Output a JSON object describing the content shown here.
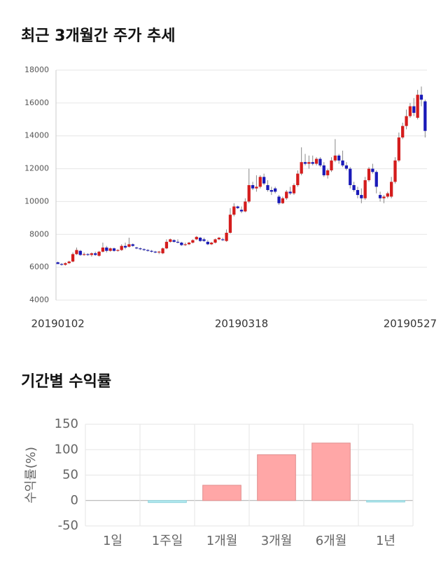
{
  "chart_data": [
    {
      "type": "candlestick",
      "title": "최근 3개월간 주가 추세",
      "up_color": "#d41c1c",
      "down_color": "#1a1ab8",
      "grid": true,
      "ylim": [
        4000,
        18000
      ],
      "yticks": [
        4000,
        6000,
        8000,
        10000,
        12000,
        14000,
        16000,
        18000
      ],
      "categories": [
        "20190102",
        null,
        null,
        null,
        null,
        null,
        null,
        null,
        null,
        null,
        null,
        null,
        null,
        null,
        null,
        null,
        null,
        null,
        null,
        null,
        null,
        null,
        null,
        null,
        null,
        null,
        null,
        null,
        null,
        null,
        null,
        null,
        null,
        null,
        null,
        null,
        null,
        null,
        null,
        null,
        null,
        null,
        null,
        null,
        null,
        null,
        null,
        null,
        null,
        "20190318",
        null,
        null,
        null,
        null,
        null,
        null,
        null,
        null,
        null,
        null,
        null,
        null,
        null,
        null,
        null,
        null,
        null,
        null,
        null,
        null,
        null,
        null,
        null,
        null,
        null,
        null,
        null,
        null,
        null,
        null,
        null,
        null,
        null,
        null,
        null,
        null,
        null,
        null,
        null,
        null,
        null,
        null,
        null,
        null,
        "20190527",
        null,
        null,
        null,
        null
      ],
      "ohlc": [
        [
          6300,
          6350,
          6200,
          6200
        ],
        [
          6200,
          6250,
          6100,
          6150
        ],
        [
          6150,
          6300,
          6100,
          6250
        ],
        [
          6250,
          6400,
          6200,
          6350
        ],
        [
          6350,
          6900,
          6300,
          6800
        ],
        [
          6800,
          7200,
          6750,
          7050
        ],
        [
          7000,
          7050,
          6700,
          6750
        ],
        [
          6750,
          6900,
          6700,
          6800
        ],
        [
          6800,
          6850,
          6700,
          6750
        ],
        [
          6750,
          6900,
          6650,
          6850
        ],
        [
          6850,
          6950,
          6700,
          6750
        ],
        [
          6700,
          7000,
          6650,
          6950
        ],
        [
          6950,
          7500,
          6900,
          7200
        ],
        [
          7200,
          7300,
          6900,
          7000
        ],
        [
          7000,
          7200,
          6950,
          7150
        ],
        [
          7150,
          7200,
          6950,
          7000
        ],
        [
          7000,
          7100,
          6950,
          7050
        ],
        [
          7050,
          7400,
          7000,
          7300
        ],
        [
          7300,
          7500,
          7100,
          7200
        ],
        [
          7250,
          7800,
          7200,
          7400
        ],
        [
          7400,
          7450,
          7250,
          7300
        ],
        [
          7200,
          7250,
          7100,
          7150
        ],
        [
          7150,
          7200,
          7050,
          7100
        ],
        [
          7100,
          7150,
          7000,
          7050
        ],
        [
          7050,
          7100,
          6950,
          7000
        ],
        [
          7000,
          7050,
          6900,
          6950
        ],
        [
          6950,
          7000,
          6850,
          6900
        ],
        [
          6900,
          7000,
          6800,
          6950
        ],
        [
          6850,
          7200,
          6800,
          7150
        ],
        [
          7150,
          7700,
          7100,
          7550
        ],
        [
          7550,
          7750,
          7500,
          7700
        ],
        [
          7650,
          7700,
          7500,
          7550
        ],
        [
          7550,
          7700,
          7450,
          7500
        ],
        [
          7500,
          7550,
          7300,
          7350
        ],
        [
          7350,
          7500,
          7300,
          7400
        ],
        [
          7400,
          7550,
          7350,
          7500
        ],
        [
          7500,
          7700,
          7450,
          7650
        ],
        [
          7700,
          7900,
          7650,
          7850
        ],
        [
          7800,
          7850,
          7550,
          7600
        ],
        [
          7700,
          7800,
          7550,
          7600
        ],
        [
          7550,
          7650,
          7350,
          7400
        ],
        [
          7400,
          7550,
          7350,
          7500
        ],
        [
          7500,
          7750,
          7450,
          7700
        ],
        [
          7700,
          7850,
          7650,
          7800
        ],
        [
          7700,
          7800,
          7600,
          7650
        ],
        [
          7600,
          8300,
          7550,
          8100
        ],
        [
          8100,
          9600,
          8050,
          9200
        ],
        [
          9200,
          9900,
          9100,
          9700
        ],
        [
          9700,
          9750,
          9550,
          9600
        ],
        [
          9500,
          9700,
          9300,
          9400
        ],
        [
          9400,
          10200,
          9350,
          10000
        ],
        [
          10000,
          12000,
          9900,
          11000
        ],
        [
          11000,
          11200,
          10700,
          10800
        ],
        [
          10800,
          11600,
          10600,
          10900
        ],
        [
          10900,
          11600,
          10800,
          11500
        ],
        [
          11500,
          11700,
          11000,
          11100
        ],
        [
          11000,
          11300,
          10600,
          10700
        ],
        [
          10700,
          10900,
          10400,
          10600
        ],
        [
          10800,
          10900,
          10500,
          10600
        ],
        [
          10300,
          10400,
          9800,
          9900
        ],
        [
          9900,
          10300,
          9850,
          10200
        ],
        [
          10200,
          10700,
          10100,
          10600
        ],
        [
          10600,
          10900,
          10400,
          10500
        ],
        [
          10500,
          11100,
          10400,
          11000
        ],
        [
          11000,
          11900,
          10900,
          11700
        ],
        [
          11700,
          13300,
          11600,
          12400
        ],
        [
          12400,
          12900,
          12200,
          12300
        ],
        [
          12300,
          12800,
          12000,
          12400
        ],
        [
          12400,
          12800,
          12200,
          12300
        ],
        [
          12300,
          12700,
          12200,
          12600
        ],
        [
          12600,
          12700,
          12100,
          12200
        ],
        [
          12200,
          12400,
          11500,
          11600
        ],
        [
          11600,
          12000,
          11400,
          11900
        ],
        [
          11900,
          12700,
          11800,
          12500
        ],
        [
          12500,
          13800,
          12400,
          12800
        ],
        [
          12800,
          12900,
          12300,
          12500
        ],
        [
          12500,
          13100,
          12100,
          12200
        ],
        [
          12200,
          12400,
          11900,
          12000
        ],
        [
          12000,
          12100,
          10800,
          11000
        ],
        [
          11000,
          11200,
          10600,
          10700
        ],
        [
          10700,
          10900,
          10200,
          10400
        ],
        [
          10400,
          10800,
          9900,
          10200
        ],
        [
          10200,
          11500,
          10100,
          11300
        ],
        [
          11300,
          12100,
          11200,
          12000
        ],
        [
          12000,
          12300,
          11700,
          11800
        ],
        [
          11800,
          11900,
          10500,
          10900
        ],
        [
          10400,
          10600,
          10000,
          10200
        ],
        [
          10200,
          10400,
          9900,
          10300
        ],
        [
          10300,
          10600,
          10200,
          10500
        ],
        [
          10300,
          11500,
          10200,
          11200
        ],
        [
          11200,
          12700,
          11100,
          12500
        ],
        [
          12500,
          14200,
          12400,
          13900
        ],
        [
          13900,
          14800,
          13800,
          14600
        ],
        [
          14600,
          15600,
          14400,
          15200
        ],
        [
          15200,
          16000,
          15100,
          15800
        ],
        [
          15800,
          16300,
          15200,
          15400
        ],
        [
          15100,
          16800,
          15000,
          16500
        ],
        [
          16500,
          17000,
          15800,
          16200
        ],
        [
          16100,
          16200,
          13900,
          14300
        ]
      ]
    },
    {
      "type": "bar",
      "title": "기간별 수익률",
      "ylabel": "수익률(%)",
      "categories": [
        "1일",
        "1주일",
        "1개월",
        "3개월",
        "6개월",
        "1년"
      ],
      "values": [
        0,
        -4,
        30,
        90,
        113,
        -3
      ],
      "color": "#ffa7a7",
      "negative_color": "#b2e8ef",
      "grid": true,
      "ylim": [
        -50,
        150
      ],
      "yticks": [
        -50,
        0,
        50,
        100,
        150
      ]
    }
  ]
}
